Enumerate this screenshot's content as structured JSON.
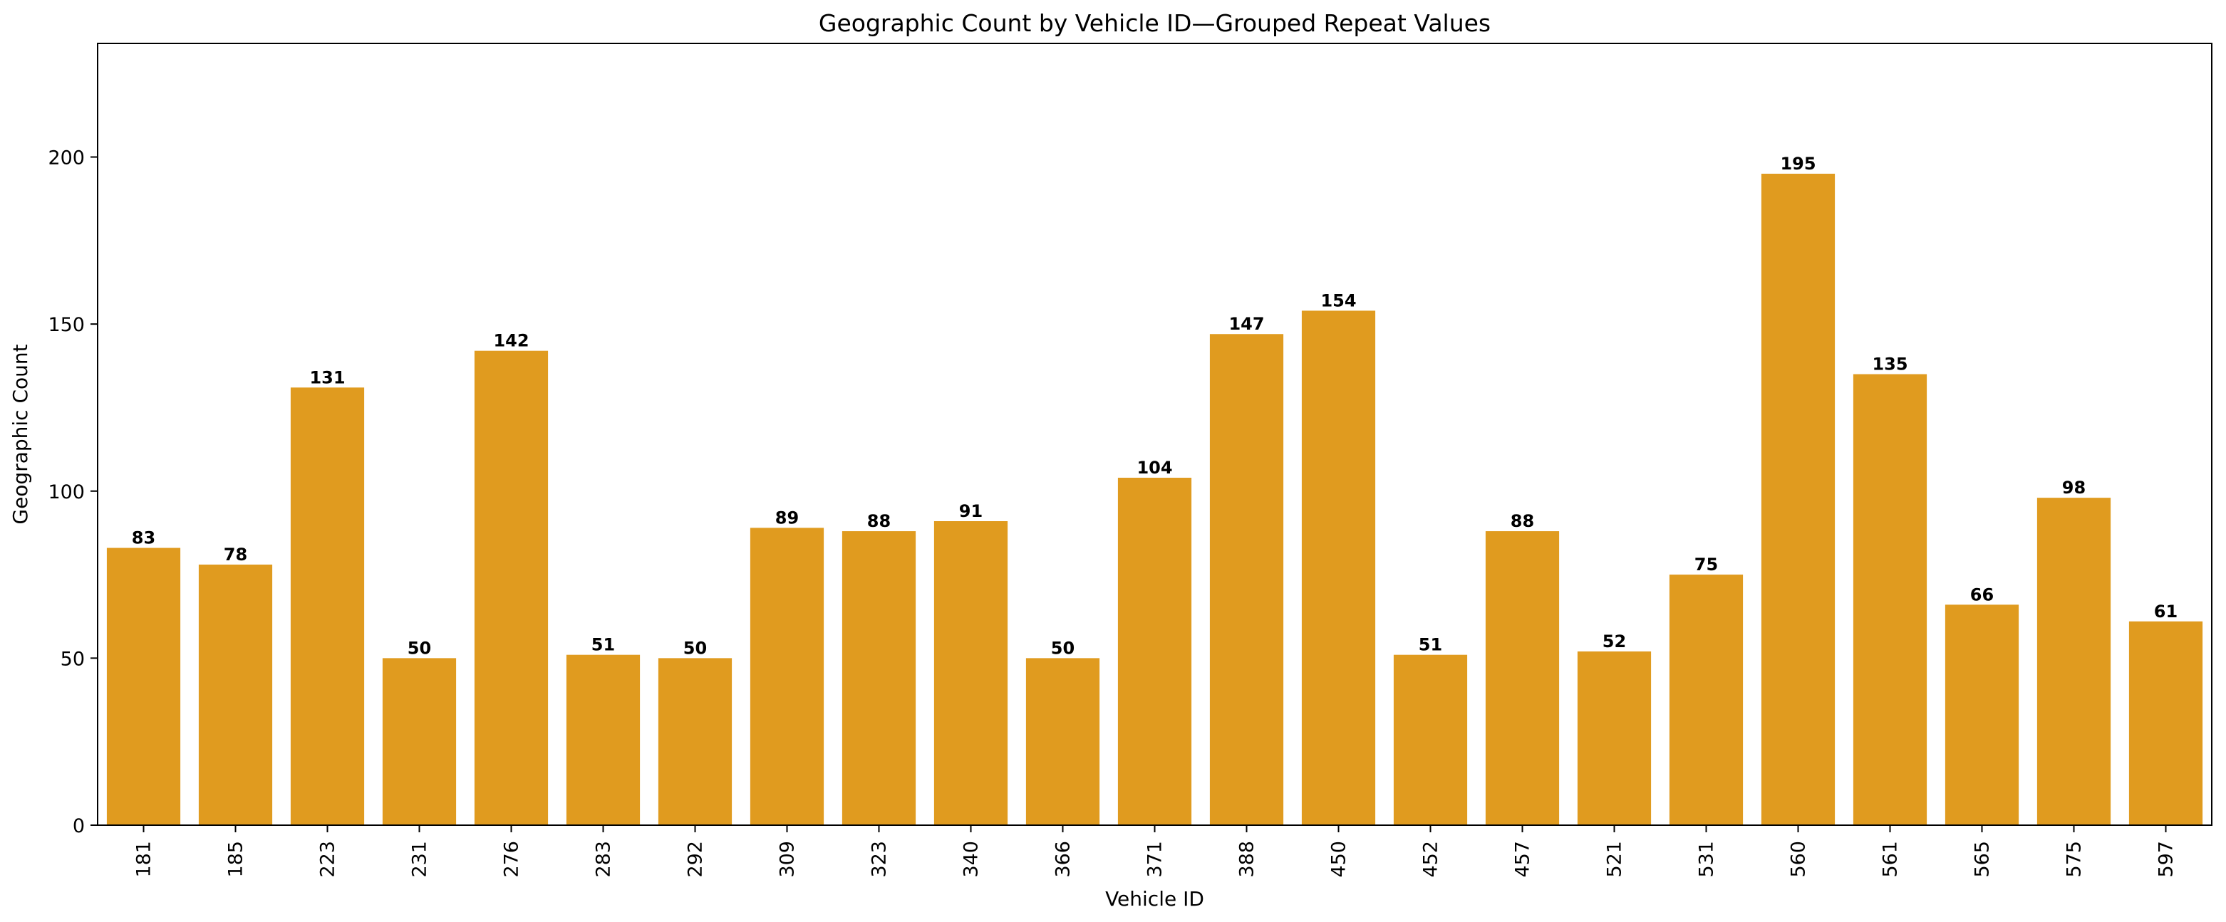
{
  "chart_data": {
    "type": "bar",
    "title": "Geographic Count by Vehicle ID—Grouped Repeat Values",
    "xlabel": "Vehicle ID",
    "ylabel": "Geographic Count",
    "categories": [
      "181",
      "185",
      "223",
      "231",
      "276",
      "283",
      "292",
      "309",
      "323",
      "340",
      "366",
      "371",
      "388",
      "450",
      "452",
      "457",
      "521",
      "531",
      "560",
      "561",
      "565",
      "575",
      "597"
    ],
    "values": [
      83,
      78,
      131,
      50,
      142,
      51,
      50,
      89,
      88,
      91,
      50,
      104,
      147,
      154,
      51,
      88,
      52,
      75,
      195,
      135,
      66,
      98,
      61
    ],
    "ylim": [
      0,
      234
    ],
    "yticks": [
      0,
      50,
      100,
      150,
      200
    ],
    "bar_color": "#e09b1f",
    "grid": false,
    "legend": "none",
    "x_tick_rotation": "vertical"
  }
}
